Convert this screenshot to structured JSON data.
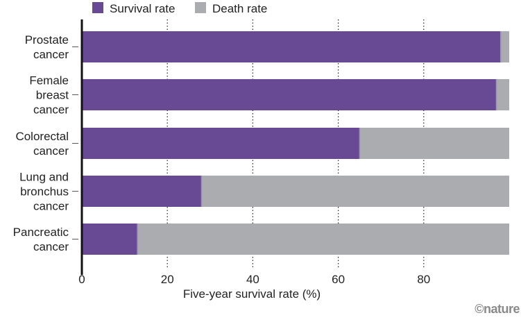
{
  "chart_data": {
    "type": "bar",
    "orientation": "horizontal",
    "stacked": true,
    "categories": [
      [
        "Prostate",
        "cancer"
      ],
      [
        "Female",
        "breast",
        "cancer"
      ],
      [
        "Colorectal",
        "cancer"
      ],
      [
        "Lung and",
        "bronchus",
        "cancer"
      ],
      [
        "Pancreatic",
        "cancer"
      ]
    ],
    "series": [
      {
        "name": "Survival rate",
        "color": "#684a94",
        "values": [
          98,
          97,
          65,
          28,
          13
        ]
      },
      {
        "name": "Death rate",
        "color": "#abacaf",
        "values": [
          2,
          3,
          35,
          72,
          87
        ]
      }
    ],
    "xlabel": "Five-year survival rate (%)",
    "ylabel": "",
    "xlim": [
      0,
      100
    ],
    "xticks": [
      0,
      20,
      40,
      60,
      80
    ],
    "grid": "vertical dotted",
    "legend": "top"
  },
  "credit": "©nature"
}
